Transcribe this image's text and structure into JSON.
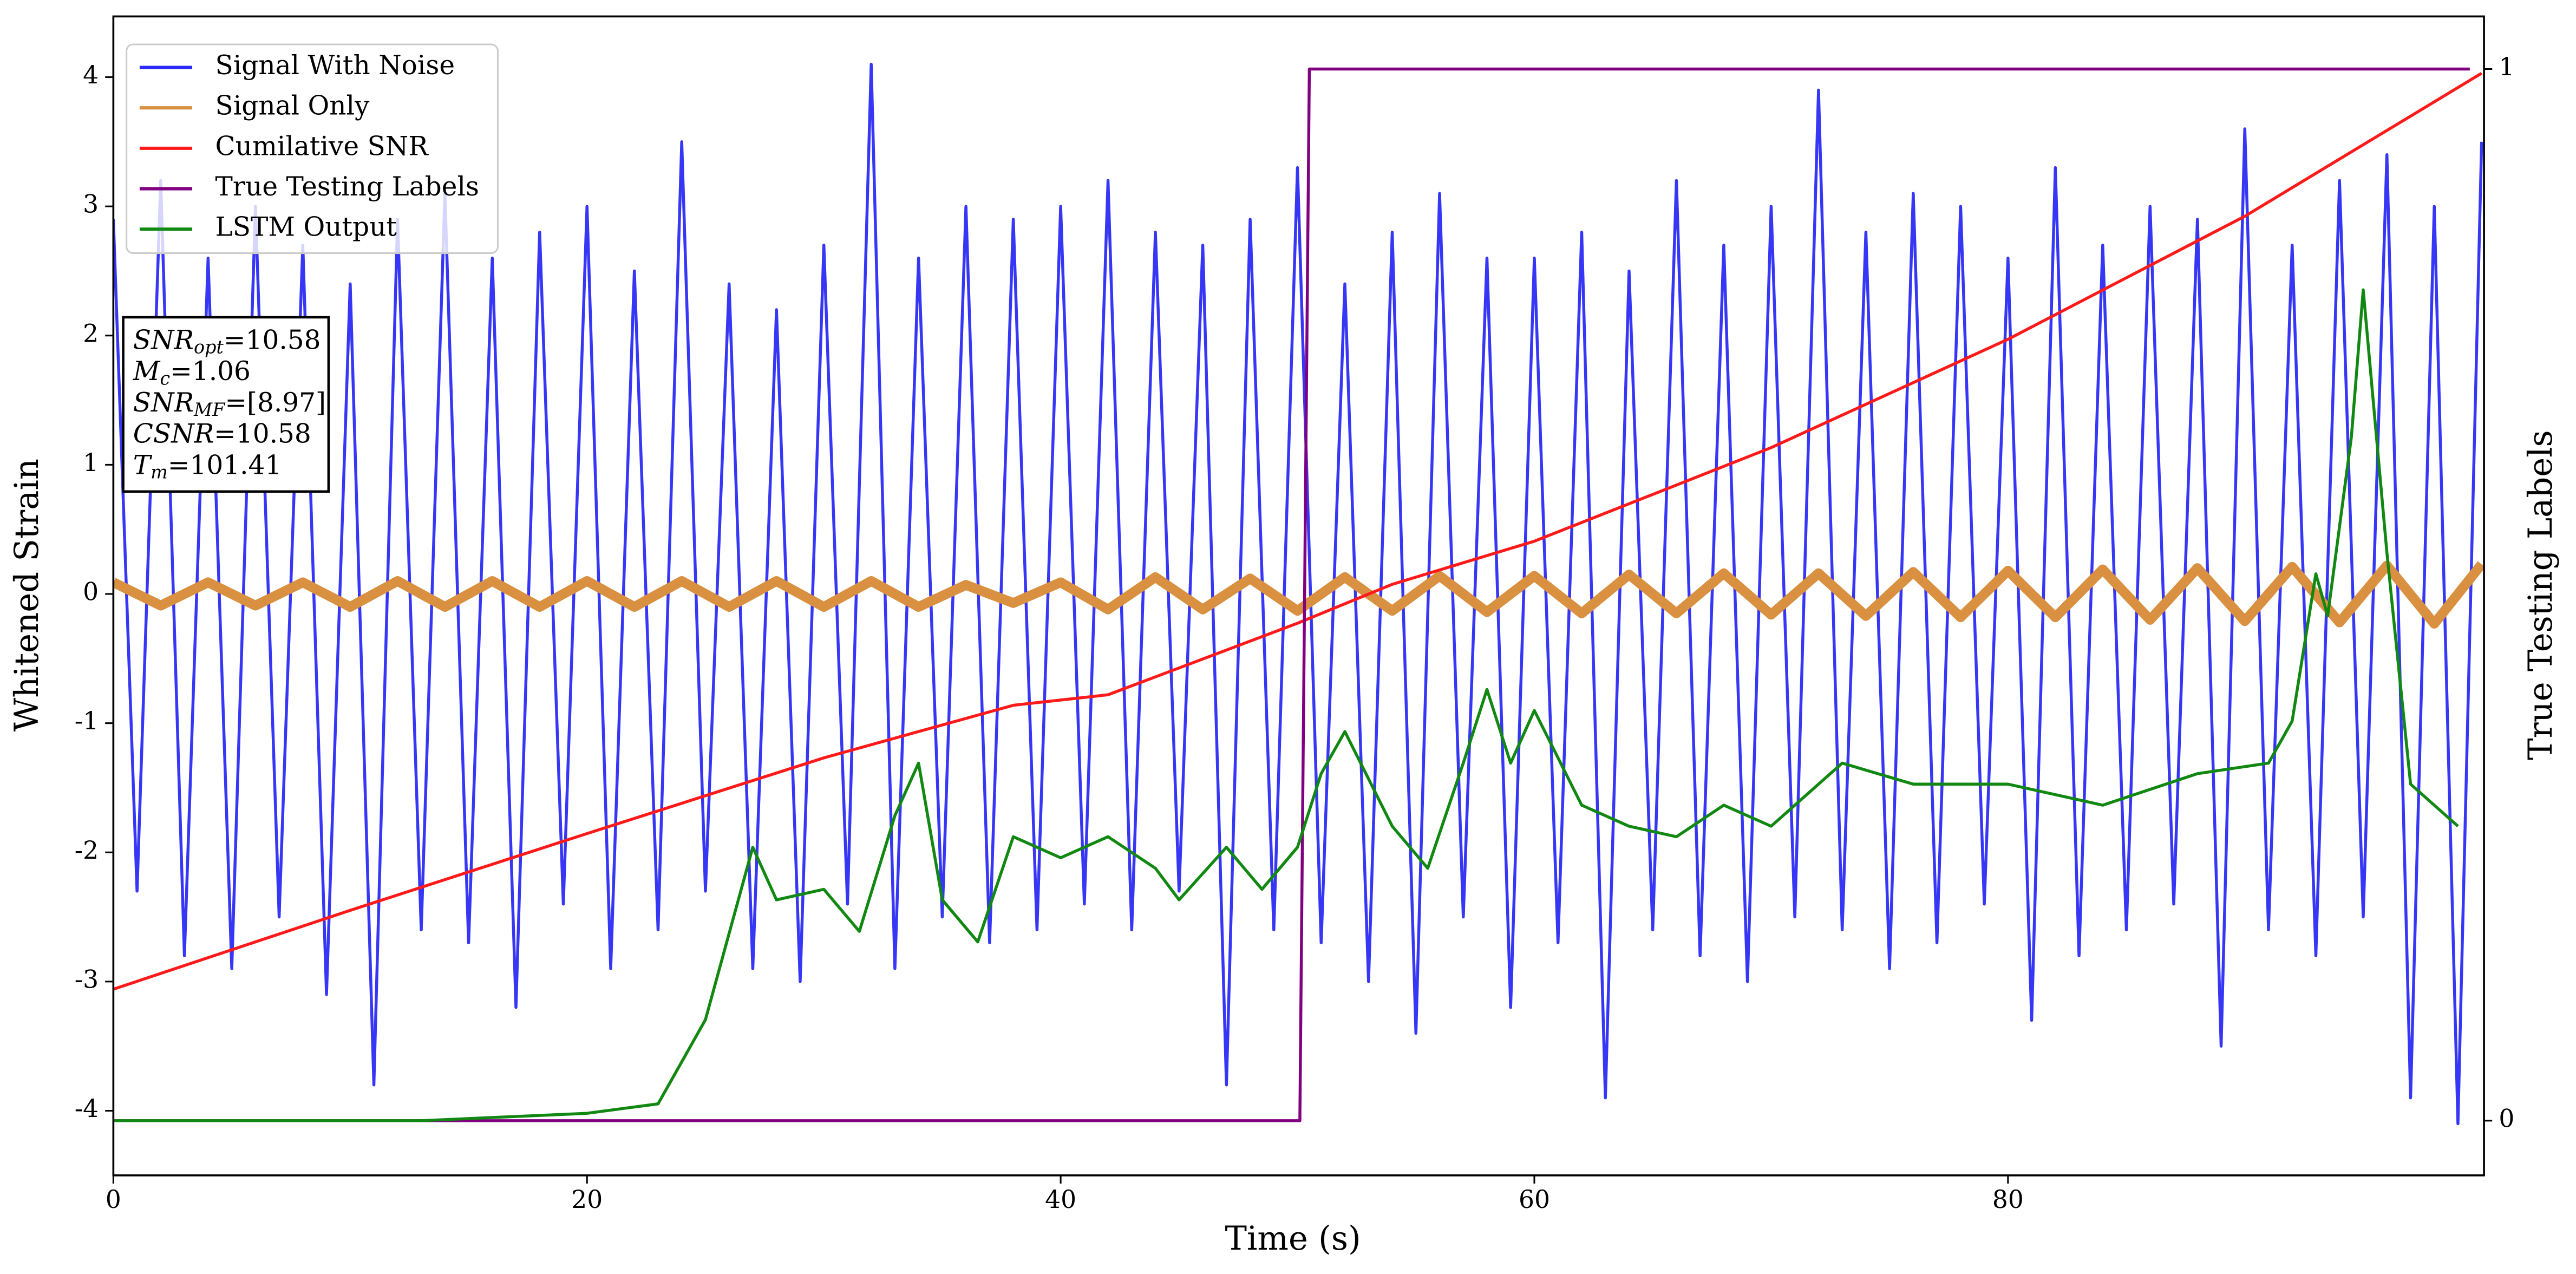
{
  "chart_data": {
    "type": "line",
    "xlabel": "Time (s)",
    "ylabel": "Whitened Strain",
    "y2label": "True Testing Labels",
    "xlim": [
      0,
      100.1
    ],
    "xticks": [
      0,
      20,
      40,
      60,
      80
    ],
    "ylim": [
      -4.5,
      4.47
    ],
    "yticks": [
      -4,
      -3,
      -2,
      -1,
      0,
      1,
      2,
      3,
      4
    ],
    "y2lim": [
      -0.052,
      1.05
    ],
    "y2ticks": [
      0,
      1
    ],
    "legend": "upper-left",
    "series": [
      {
        "name": "Signal With Noise",
        "color": "#2b2bf5",
        "opacity": 0.95,
        "x": [
          0,
          1,
          2,
          3,
          4,
          5,
          6,
          7,
          8,
          9,
          10,
          11,
          12,
          13,
          14,
          15,
          16,
          17,
          18,
          19,
          20,
          21,
          22,
          23,
          24,
          25,
          26,
          27,
          28,
          29,
          30,
          31,
          32,
          33,
          34,
          35,
          36,
          37,
          38,
          39,
          40,
          41,
          42,
          43,
          44,
          45,
          46,
          47,
          48,
          49,
          50,
          51,
          52,
          53,
          54,
          55,
          56,
          57,
          58,
          59,
          60,
          61,
          62,
          63,
          64,
          65,
          66,
          67,
          68,
          69,
          70,
          71,
          72,
          73,
          74,
          75,
          76,
          77,
          78,
          79,
          80,
          81,
          82,
          83,
          84,
          85,
          86,
          87,
          88,
          89,
          90,
          91,
          92,
          93,
          94,
          95,
          96,
          97,
          98,
          99,
          100
        ],
        "values": [
          2.9,
          -2.3,
          3.2,
          -2.8,
          2.6,
          -2.9,
          3.0,
          -2.5,
          2.7,
          -3.1,
          2.4,
          -3.8,
          2.9,
          -2.6,
          3.1,
          -2.7,
          2.6,
          -3.2,
          2.8,
          -2.4,
          3.0,
          -2.9,
          2.5,
          -2.6,
          3.5,
          -2.3,
          2.4,
          -2.9,
          2.2,
          -3.0,
          2.7,
          -2.4,
          4.1,
          -2.9,
          2.6,
          -2.5,
          3.0,
          -2.7,
          2.9,
          -2.6,
          3.0,
          -2.4,
          3.2,
          -2.6,
          2.8,
          -2.3,
          2.7,
          -3.8,
          2.9,
          -2.6,
          3.3,
          -2.7,
          2.4,
          -3.0,
          2.8,
          -3.4,
          3.1,
          -2.5,
          2.6,
          -3.2,
          2.6,
          -2.7,
          2.8,
          -3.9,
          2.5,
          -2.6,
          3.2,
          -2.8,
          2.7,
          -3.0,
          3.0,
          -2.5,
          3.9,
          -2.6,
          2.8,
          -2.9,
          3.1,
          -2.7,
          3.0,
          -2.4,
          2.6,
          -3.3,
          3.3,
          -2.8,
          2.7,
          -2.6,
          3.0,
          -2.4,
          2.9,
          -3.5,
          3.6,
          -2.6,
          2.7,
          -2.8,
          3.2,
          -2.5,
          3.4,
          -3.9,
          3.0,
          -4.1,
          3.5
        ]
      },
      {
        "name": "Signal Only",
        "color": "#d99040",
        "opacity": 1,
        "x": [
          0,
          2,
          4,
          6,
          8,
          10,
          12,
          14,
          16,
          18,
          20,
          22,
          24,
          26,
          28,
          30,
          32,
          34,
          36,
          38,
          40,
          42,
          44,
          46,
          48,
          50,
          52,
          54,
          56,
          58,
          60,
          62,
          64,
          66,
          68,
          70,
          72,
          74,
          76,
          78,
          80,
          82,
          84,
          86,
          88,
          90,
          92,
          94,
          96,
          98,
          100
        ],
        "values": [
          0.09,
          -0.09,
          0.09,
          -0.09,
          0.09,
          -0.1,
          0.1,
          -0.1,
          0.1,
          -0.1,
          0.1,
          -0.1,
          0.1,
          -0.1,
          0.1,
          -0.1,
          0.1,
          -0.1,
          0.07,
          -0.07,
          0.09,
          -0.12,
          0.13,
          -0.12,
          0.12,
          -0.13,
          0.13,
          -0.13,
          0.14,
          -0.14,
          0.14,
          -0.15,
          0.15,
          -0.15,
          0.16,
          -0.16,
          0.16,
          -0.17,
          0.17,
          -0.18,
          0.18,
          -0.18,
          0.19,
          -0.2,
          0.2,
          -0.21,
          0.21,
          -0.22,
          0.22,
          -0.23,
          0.23
        ]
      },
      {
        "name": "Cumilative SNR",
        "color": "#ff1a1a",
        "opacity": 1,
        "axis": "y2",
        "x": [
          0,
          10,
          20,
          30,
          38,
          42,
          50,
          54,
          60,
          70,
          80,
          90,
          100
        ],
        "values": [
          0.125,
          0.2,
          0.273,
          0.345,
          0.395,
          0.405,
          0.473,
          0.51,
          0.551,
          0.64,
          0.743,
          0.86,
          0.996
        ]
      },
      {
        "name": "True Testing Labels",
        "color": "#800080",
        "opacity": 1,
        "axis": "y2",
        "x": [
          0,
          50.1,
          50.5,
          99.5
        ],
        "values": [
          0,
          0,
          1,
          1
        ]
      },
      {
        "name": "LSTM Output",
        "color": "#118811",
        "opacity": 1,
        "axis": "y2",
        "x": [
          0,
          13,
          17,
          20,
          23,
          25,
          27,
          28,
          30,
          31.5,
          33,
          34,
          35,
          36.5,
          38,
          40,
          42,
          44,
          45,
          47,
          48.5,
          50,
          51,
          52,
          54,
          55.5,
          57,
          58,
          59,
          60,
          62,
          64,
          66,
          68,
          70,
          73,
          76,
          80,
          84,
          88,
          91,
          92,
          93,
          93.5,
          94.5,
          95,
          96,
          97,
          98,
          99
        ],
        "values": [
          0,
          0,
          0.004,
          0.007,
          0.016,
          0.096,
          0.26,
          0.21,
          0.22,
          0.18,
          0.29,
          0.34,
          0.21,
          0.17,
          0.27,
          0.25,
          0.27,
          0.24,
          0.21,
          0.26,
          0.22,
          0.26,
          0.33,
          0.37,
          0.28,
          0.24,
          0.34,
          0.41,
          0.34,
          0.39,
          0.3,
          0.28,
          0.27,
          0.3,
          0.28,
          0.34,
          0.32,
          0.32,
          0.3,
          0.33,
          0.34,
          0.38,
          0.52,
          0.48,
          0.65,
          0.79,
          0.54,
          0.32,
          0.3,
          0.28
        ]
      }
    ],
    "annotation": [
      {
        "text": "SNR",
        "sub": "opt",
        "value": "=10.58"
      },
      {
        "text": "M",
        "sub": "c",
        "value": "=1.06"
      },
      {
        "text": "SNR",
        "sub": "MF",
        "value": "=[8.97]"
      },
      {
        "text": "CSNR",
        "value": "=10.58"
      },
      {
        "text": "T",
        "sub": "m",
        "value": "=101.41"
      }
    ]
  }
}
